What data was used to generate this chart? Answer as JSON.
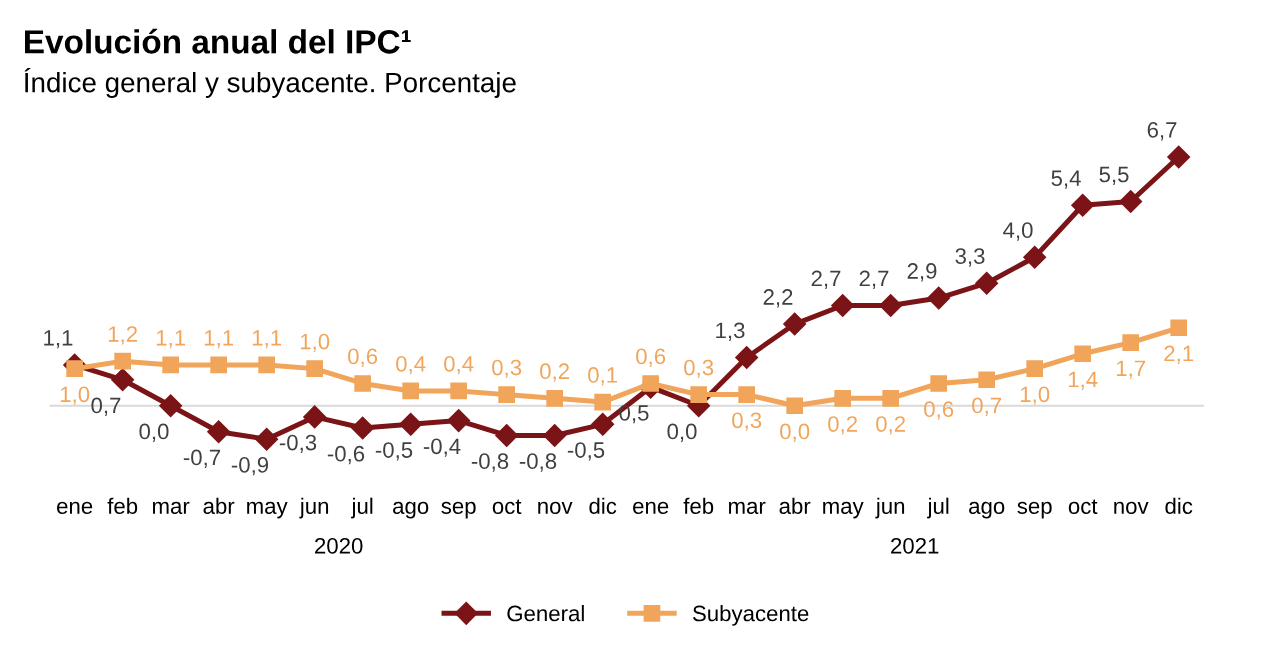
{
  "chart_data": {
    "type": "line",
    "title": "Evolución anual del IPC¹",
    "subtitle": "Índice general y subyacente. Porcentaje",
    "categories": [
      "ene",
      "feb",
      "mar",
      "abr",
      "may",
      "jun",
      "jul",
      "ago",
      "sep",
      "oct",
      "nov",
      "dic",
      "ene",
      "feb",
      "mar",
      "abr",
      "may",
      "jun",
      "jul",
      "ago",
      "sep",
      "oct",
      "nov",
      "dic"
    ],
    "series": [
      {
        "name": "General",
        "color": "#7b1416",
        "marker": "diamond",
        "values": [
          1.1,
          0.7,
          0.0,
          -0.7,
          -0.9,
          -0.3,
          -0.6,
          -0.5,
          -0.4,
          -0.8,
          -0.8,
          -0.5,
          0.5,
          0.0,
          1.3,
          2.2,
          2.7,
          2.7,
          2.9,
          3.3,
          4.0,
          5.4,
          5.5,
          6.7
        ],
        "value_labels": [
          "1,1",
          "0,7",
          "0,0",
          "-0,7",
          "-0,9",
          "-0,3",
          "-0,6",
          "-0,5",
          "-0,4",
          "-0,8",
          "-0,8",
          "-0,5",
          "0,5",
          "0,0",
          "1,3",
          "2,2",
          "2,7",
          "2,7",
          "2,9",
          "3,3",
          "4,0",
          "5,4",
          "5,5",
          "6,7"
        ]
      },
      {
        "name": "Subyacente",
        "color": "#f0a55a",
        "marker": "square",
        "values": [
          1.0,
          1.2,
          1.1,
          1.1,
          1.1,
          1.0,
          0.6,
          0.4,
          0.4,
          0.3,
          0.2,
          0.1,
          0.6,
          0.3,
          0.3,
          0.0,
          0.2,
          0.2,
          0.6,
          0.7,
          1.0,
          1.4,
          1.7,
          2.1
        ],
        "value_labels": [
          "1,0",
          "1,2",
          "1,1",
          "1,1",
          "1,1",
          "1,0",
          "0,6",
          "0,4",
          "0,4",
          "0,3",
          "0,2",
          "0,1",
          "0,6",
          "0,3",
          "0,3",
          "0,0",
          "0,2",
          "0,2",
          "0,6",
          "0,7",
          "1,0",
          "1,4",
          "1,7",
          "2,1"
        ]
      }
    ],
    "tick_labels": "x",
    "legend": "bottom",
    "annotations": [
      "2020",
      "2021"
    ]
  }
}
